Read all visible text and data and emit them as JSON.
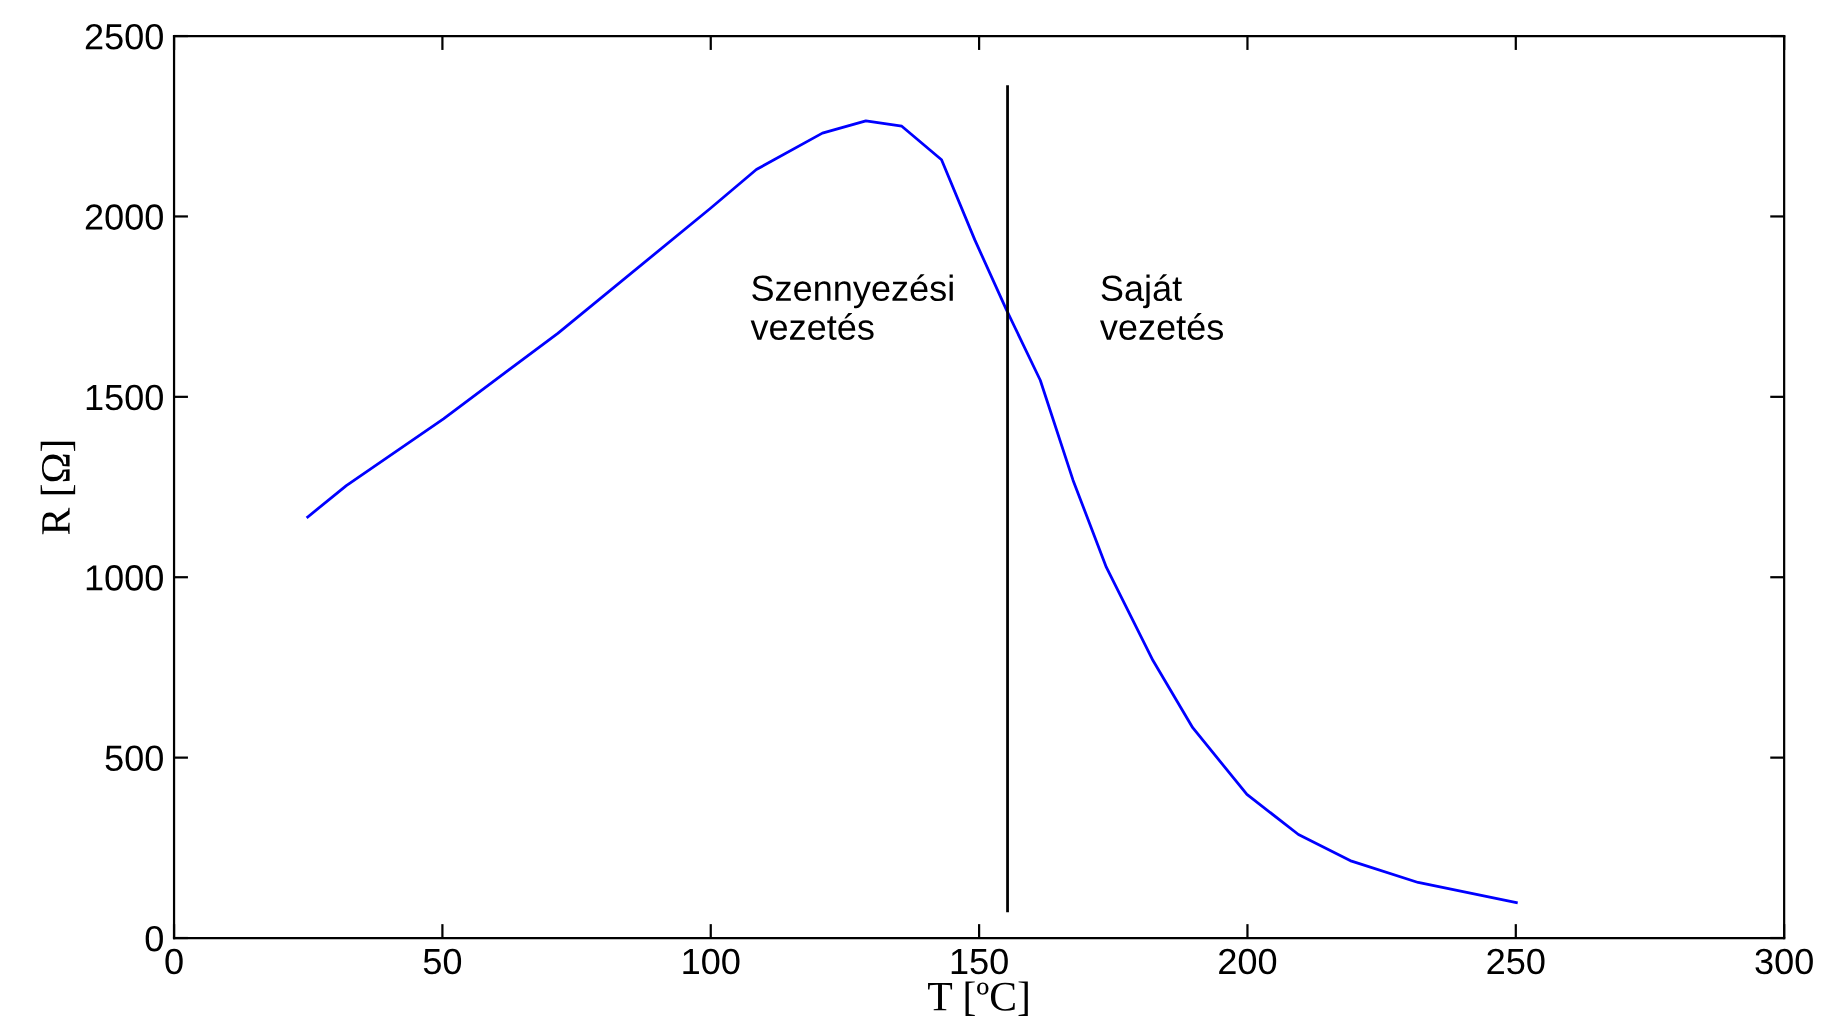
{
  "chart_data": {
    "type": "line",
    "xlabel": "T [ºC]",
    "ylabel": "R [Ω]",
    "xlim": [
      0,
      300
    ],
    "xticks": [
      0,
      50,
      100,
      150,
      200,
      250,
      300
    ],
    "ylim": [
      0,
      2500
    ],
    "yticks": [
      0,
      500,
      1000,
      1500,
      2000,
      2500
    ],
    "grid": false,
    "legend": false,
    "series": [
      {
        "color": "#0000ff",
        "x": [
          24.9,
          32.1,
          50.2,
          71.5,
          99.9,
          108.5,
          120.8,
          128.9,
          135.6,
          143.0,
          149.2,
          155.1,
          161.4,
          167.5,
          173.7,
          182.4,
          189.8,
          199.9,
          209.5,
          219.4,
          231.8,
          250.1
        ],
        "values": [
          1167,
          1254,
          1439,
          1676,
          2022,
          2130,
          2231,
          2265,
          2250,
          2157,
          1935,
          1741,
          1546,
          1269,
          1028,
          769,
          583,
          398,
          287,
          213,
          154,
          98
        ]
      },
      {
        "color": "#000000",
        "x": [
          155.3,
          155.3
        ],
        "values": [
          2360,
          75
        ]
      }
    ],
    "annotations": [
      "Szennyezési\nvezetés",
      "Saját\nvezetés"
    ]
  }
}
